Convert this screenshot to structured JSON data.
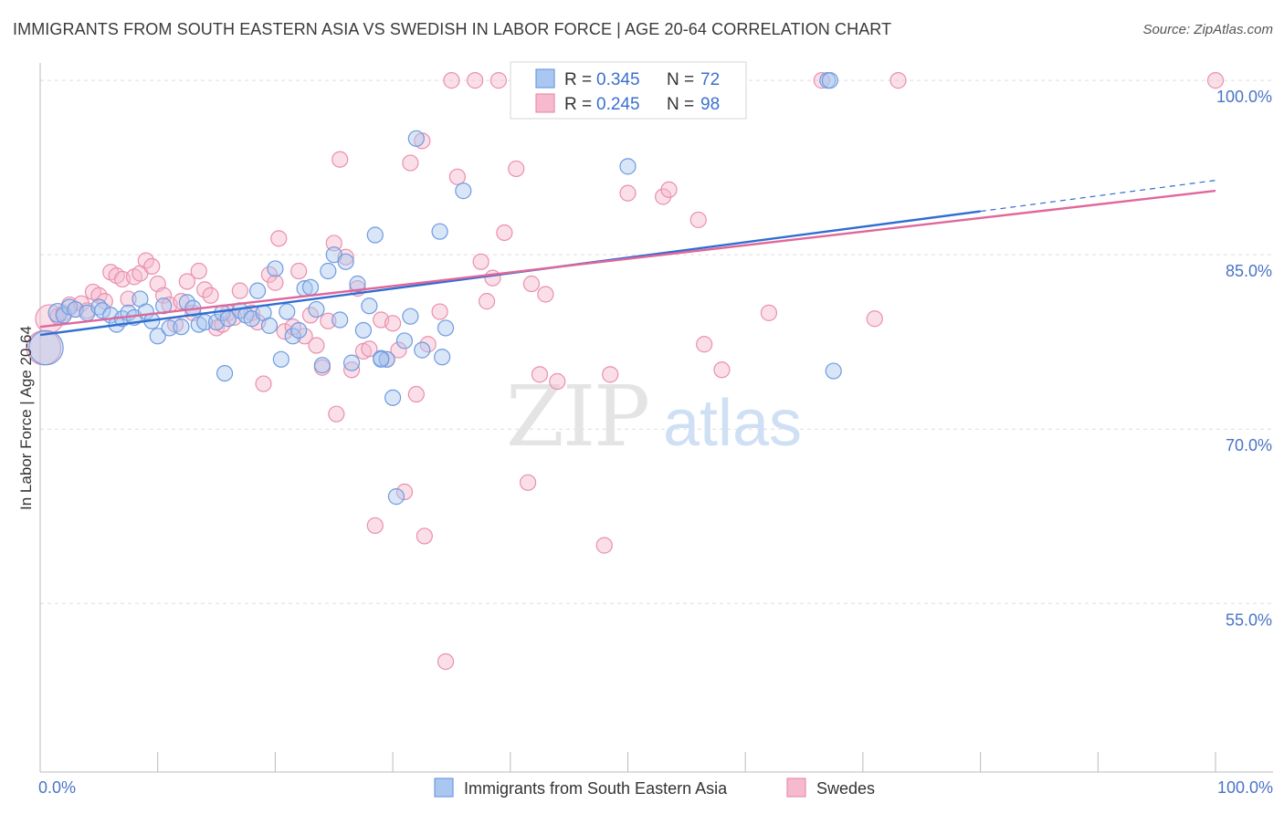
{
  "title": "IMMIGRANTS FROM SOUTH EASTERN ASIA VS SWEDISH IN LABOR FORCE | AGE 20-64 CORRELATION CHART",
  "source": "Source: ZipAtlas.com",
  "watermark": {
    "zip": "ZIP",
    "atlas": "atlas"
  },
  "colors": {
    "blue_fill": "#a9c7f0",
    "blue_stroke": "#6f9be0",
    "blue_line": "#2f6ed1",
    "pink_fill": "#f6b9cd",
    "pink_stroke": "#ea8fae",
    "pink_line": "#e0679a",
    "grid": "#dddddd",
    "tick_text": "#4a74c6"
  },
  "chart_data": {
    "type": "scatter",
    "ylabel": "In Labor Force | Age 20-64",
    "x_tick_labels": [
      "0.0%",
      "100.0%"
    ],
    "y_ticks": [
      {
        "value": 100,
        "label": "100.0%"
      },
      {
        "value": 85,
        "label": "85.0%"
      },
      {
        "value": 70,
        "label": "70.0%"
      },
      {
        "value": 55,
        "label": "55.0%"
      }
    ],
    "xlim": [
      0,
      100
    ],
    "ylim": [
      40.5,
      101.5
    ],
    "grid": "horizontal dashed",
    "legend": {
      "placement": "top-center",
      "entries": [
        {
          "r_label": "R =",
          "r": "0.345",
          "n_label": "N =",
          "n": "72"
        },
        {
          "r_label": "R =",
          "r": "0.245",
          "n_label": "N =",
          "n": "98"
        }
      ]
    },
    "series": [
      {
        "name": "Immigrants from South Eastern Asia",
        "color": "blue",
        "trend": {
          "x": [
            0,
            100
          ],
          "y": [
            78.1,
            91.4
          ],
          "solid_until_x": 80
        },
        "points": [
          [
            0.5,
            77.0,
            2.2
          ],
          [
            1.5,
            80.0,
            1.2
          ],
          [
            2,
            79.8,
            1
          ],
          [
            2.5,
            80.5,
            1
          ],
          [
            3,
            80.3,
            1
          ],
          [
            4,
            80.0,
            1
          ],
          [
            5,
            80.5,
            1
          ],
          [
            5.3,
            80.2,
            1
          ],
          [
            6,
            79.8,
            1
          ],
          [
            6.5,
            79.0,
            1
          ],
          [
            7,
            79.5,
            1
          ],
          [
            7.5,
            80.0,
            1
          ],
          [
            8,
            79.6,
            1
          ],
          [
            8.5,
            81.2,
            1
          ],
          [
            9,
            80.1,
            1
          ],
          [
            9.5,
            79.3,
            1
          ],
          [
            10,
            78.0,
            1
          ],
          [
            10.5,
            80.6,
            1
          ],
          [
            11,
            78.7,
            1
          ],
          [
            12,
            78.8,
            1
          ],
          [
            12.5,
            80.9,
            1
          ],
          [
            13,
            80.4,
            1
          ],
          [
            13.5,
            79.0,
            1
          ],
          [
            14,
            79.2,
            1
          ],
          [
            15,
            79.2,
            1
          ],
          [
            15.5,
            80.0,
            1
          ],
          [
            15.7,
            74.8,
            1
          ],
          [
            16,
            79.5,
            1
          ],
          [
            17,
            80.2,
            1
          ],
          [
            17.5,
            79.8,
            1
          ],
          [
            18,
            79.5,
            1
          ],
          [
            18.5,
            81.9,
            1
          ],
          [
            19,
            80.0,
            1
          ],
          [
            19.5,
            78.9,
            1
          ],
          [
            20,
            83.8,
            1
          ],
          [
            20.5,
            76.0,
            1
          ],
          [
            21,
            80.1,
            1
          ],
          [
            21.5,
            78.0,
            1
          ],
          [
            22,
            78.5,
            1
          ],
          [
            22.5,
            82.1,
            1
          ],
          [
            23,
            82.2,
            1
          ],
          [
            23.5,
            80.3,
            1
          ],
          [
            24,
            75.5,
            1
          ],
          [
            24.5,
            83.6,
            1
          ],
          [
            25,
            85.0,
            1
          ],
          [
            25.5,
            79.4,
            1
          ],
          [
            26,
            84.4,
            1
          ],
          [
            26.5,
            75.7,
            1
          ],
          [
            27,
            82.5,
            1
          ],
          [
            27.5,
            78.5,
            1
          ],
          [
            28,
            80.6,
            1
          ],
          [
            28.5,
            86.7,
            1
          ],
          [
            29,
            76.1,
            1
          ],
          [
            29.5,
            76.0,
            1
          ],
          [
            30,
            72.7,
            1
          ],
          [
            30.3,
            64.2,
            1
          ],
          [
            31,
            77.6,
            1
          ],
          [
            31.5,
            79.7,
            1
          ],
          [
            32,
            95.0,
            1
          ],
          [
            32.5,
            76.8,
            1
          ],
          [
            34,
            87.0,
            1
          ],
          [
            34.2,
            76.2,
            1
          ],
          [
            34.5,
            78.7,
            1
          ],
          [
            36,
            90.5,
            1
          ],
          [
            43,
            100.0,
            1
          ],
          [
            43.5,
            100.0,
            1
          ],
          [
            50,
            92.6,
            1
          ],
          [
            67,
            100.0,
            1
          ],
          [
            67.2,
            100.0,
            1
          ],
          [
            67.5,
            75.0,
            1
          ],
          [
            47,
            100.0,
            1
          ],
          [
            29,
            76.0,
            1
          ]
        ]
      },
      {
        "name": "Swedes",
        "color": "pink",
        "trend": {
          "x": [
            0,
            100
          ],
          "y": [
            78.8,
            90.5
          ]
        },
        "points": [
          [
            0.3,
            77.0,
            2.2
          ],
          [
            0.8,
            79.5,
            1.8
          ],
          [
            1.5,
            79.7,
            1
          ],
          [
            2,
            80.0,
            1
          ],
          [
            2.5,
            80.7,
            1
          ],
          [
            3,
            80.3,
            1
          ],
          [
            3.5,
            80.8,
            1
          ],
          [
            4,
            80.2,
            1
          ],
          [
            4.5,
            81.8,
            1
          ],
          [
            5,
            81.5,
            1
          ],
          [
            5.5,
            81.0,
            1
          ],
          [
            6,
            83.5,
            1
          ],
          [
            6.5,
            83.2,
            1
          ],
          [
            7,
            82.9,
            1
          ],
          [
            7.5,
            81.2,
            1
          ],
          [
            8,
            83.1,
            1
          ],
          [
            8.5,
            83.4,
            1
          ],
          [
            9,
            84.5,
            1
          ],
          [
            9.5,
            84.0,
            1
          ],
          [
            10,
            82.5,
            1
          ],
          [
            10.5,
            81.5,
            1
          ],
          [
            11,
            80.7,
            1
          ],
          [
            11.5,
            79.0,
            1
          ],
          [
            12,
            81.0,
            1
          ],
          [
            12.5,
            82.7,
            1
          ],
          [
            13,
            80.0,
            1
          ],
          [
            13.5,
            83.6,
            1
          ],
          [
            14,
            82.0,
            1
          ],
          [
            14.5,
            81.5,
            1
          ],
          [
            15,
            78.7,
            1
          ],
          [
            15.5,
            79.0,
            1
          ],
          [
            16,
            80.0,
            1
          ],
          [
            16.5,
            79.6,
            1
          ],
          [
            17,
            81.9,
            1
          ],
          [
            18,
            80.0,
            1
          ],
          [
            18.5,
            79.2,
            1
          ],
          [
            19,
            73.9,
            1
          ],
          [
            19.5,
            83.3,
            1
          ],
          [
            20,
            82.6,
            1
          ],
          [
            20.3,
            86.4,
            1
          ],
          [
            20.8,
            78.4,
            1
          ],
          [
            21.5,
            78.8,
            1
          ],
          [
            22,
            83.6,
            1
          ],
          [
            22.5,
            78.0,
            1
          ],
          [
            23,
            79.8,
            1
          ],
          [
            23.5,
            77.2,
            1
          ],
          [
            24,
            75.3,
            1
          ],
          [
            24.5,
            79.3,
            1
          ],
          [
            25,
            86.0,
            1
          ],
          [
            25.2,
            71.3,
            1
          ],
          [
            25.5,
            93.2,
            1
          ],
          [
            26,
            84.8,
            1
          ],
          [
            26.5,
            75.1,
            1
          ],
          [
            27,
            82.1,
            1
          ],
          [
            27.5,
            76.7,
            1
          ],
          [
            28,
            76.9,
            1
          ],
          [
            28.5,
            61.7,
            1
          ],
          [
            29,
            79.4,
            1
          ],
          [
            29.5,
            76.0,
            1
          ],
          [
            30,
            79.1,
            1
          ],
          [
            30.5,
            76.8,
            1
          ],
          [
            31,
            64.6,
            1
          ],
          [
            31.5,
            92.9,
            1
          ],
          [
            32,
            73.0,
            1
          ],
          [
            32.5,
            94.8,
            1
          ],
          [
            32.7,
            60.8,
            1
          ],
          [
            33,
            77.3,
            1
          ],
          [
            34,
            80.1,
            1
          ],
          [
            34.5,
            50.0,
            1
          ],
          [
            35,
            100.0,
            1
          ],
          [
            35.5,
            91.7,
            1
          ],
          [
            37,
            100.0,
            1
          ],
          [
            37.5,
            84.4,
            1
          ],
          [
            38,
            81.0,
            1
          ],
          [
            38.5,
            83.0,
            1
          ],
          [
            39,
            100.0,
            1
          ],
          [
            39.5,
            86.9,
            1
          ],
          [
            40.5,
            92.4,
            1
          ],
          [
            41,
            100.0,
            1
          ],
          [
            41.5,
            65.4,
            1
          ],
          [
            41.8,
            82.5,
            1
          ],
          [
            42,
            100.0,
            1
          ],
          [
            42.5,
            74.7,
            1
          ],
          [
            43,
            81.6,
            1
          ],
          [
            44,
            74.1,
            1
          ],
          [
            48,
            60.0,
            1
          ],
          [
            48.5,
            74.7,
            1
          ],
          [
            50,
            90.3,
            1
          ],
          [
            53,
            90.0,
            1
          ],
          [
            53.5,
            90.6,
            1
          ],
          [
            56,
            88.0,
            1
          ],
          [
            56.5,
            77.3,
            1
          ],
          [
            58,
            75.1,
            1
          ],
          [
            62,
            80.0,
            1
          ],
          [
            66.5,
            100.0,
            1
          ],
          [
            71,
            79.5,
            1
          ],
          [
            73,
            100.0,
            1
          ],
          [
            100,
            100.0,
            1
          ]
        ]
      }
    ]
  }
}
